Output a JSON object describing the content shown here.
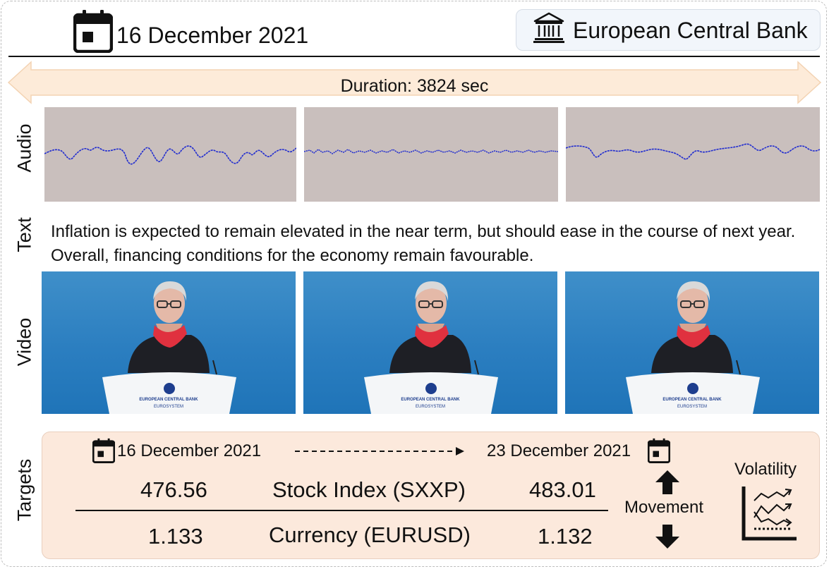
{
  "header": {
    "date": "16 December 2021",
    "bank_name": "European Central Bank",
    "duration": "Duration: 3824 sec"
  },
  "modalities": {
    "audio_label": "Audio",
    "text_label": "Text",
    "video_label": "Video",
    "targets_label": "Targets"
  },
  "text_excerpt": "Inflation is expected to remain elevated in the near term, but should ease in the course of next year. Overall, financing conditions for the economy remain favourable.",
  "video": {
    "podium_line1": "EUROPEAN CENTRAL BANK",
    "podium_line2": "EUROSYSTEM"
  },
  "targets": {
    "start_date": "16 December 2021",
    "end_date": "23 December 2021",
    "rows": [
      {
        "start_value": "476.56",
        "label": "Stock Index (SXXP)",
        "end_value": "483.01"
      },
      {
        "start_value": "1.133",
        "label": "Currency (EURUSD)",
        "end_value": "1.132"
      }
    ],
    "movement_label": "Movement",
    "volatility_label": "Volatility"
  },
  "colors": {
    "arrow_fill": "#fdebd9",
    "audio_bg": "#c9bfbd",
    "waveform": "#1f2bd0",
    "targets_bg": "#fce9dc",
    "video_bg": "#2b7ec0",
    "scarf": "#e0313f"
  },
  "icons": [
    "calendar-icon",
    "bank-icon",
    "arrow-up-icon",
    "arrow-down-icon",
    "volatility-chart-icon"
  ]
}
